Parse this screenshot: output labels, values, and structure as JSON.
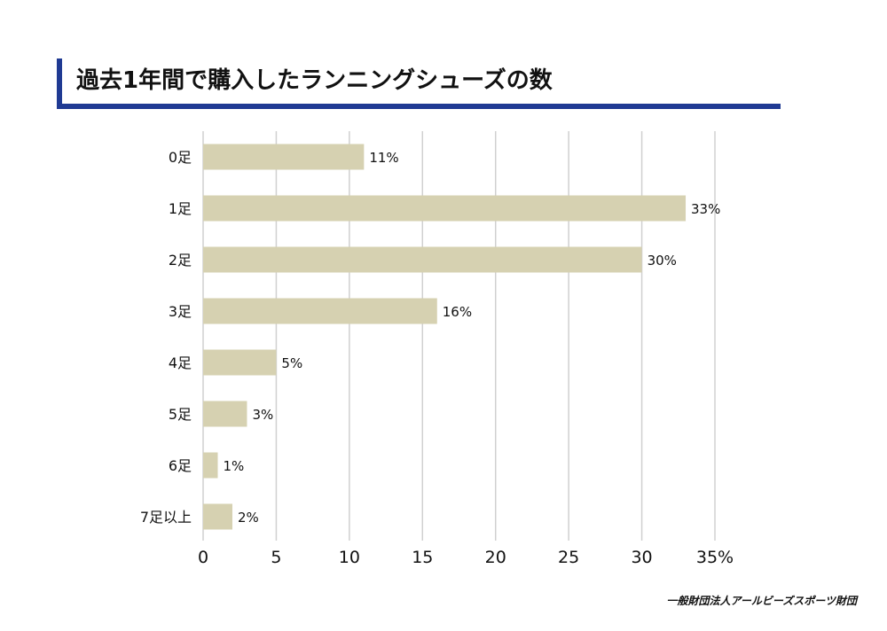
{
  "title": "過去1年間で購入したランニングシューズの数",
  "credit": "一般財団法人アールビーズスポーツ財団",
  "colors": {
    "bar": "#d6d1b1",
    "accent": "#1f3a93",
    "grid": "#d0d0d0"
  },
  "chart_data": {
    "type": "bar",
    "orientation": "horizontal",
    "categories": [
      "0足",
      "1足",
      "2足",
      "3足",
      "4足",
      "5足",
      "6足",
      "7足以上"
    ],
    "values": [
      11,
      33,
      30,
      16,
      5,
      3,
      1,
      2
    ],
    "value_labels": [
      "11%",
      "33%",
      "30%",
      "16%",
      "5%",
      "3%",
      "1%",
      "2%"
    ],
    "x_ticks": [
      "0",
      "5",
      "10",
      "15",
      "20",
      "25",
      "30",
      "35%"
    ],
    "xlim": [
      0,
      35
    ],
    "grid": true
  }
}
